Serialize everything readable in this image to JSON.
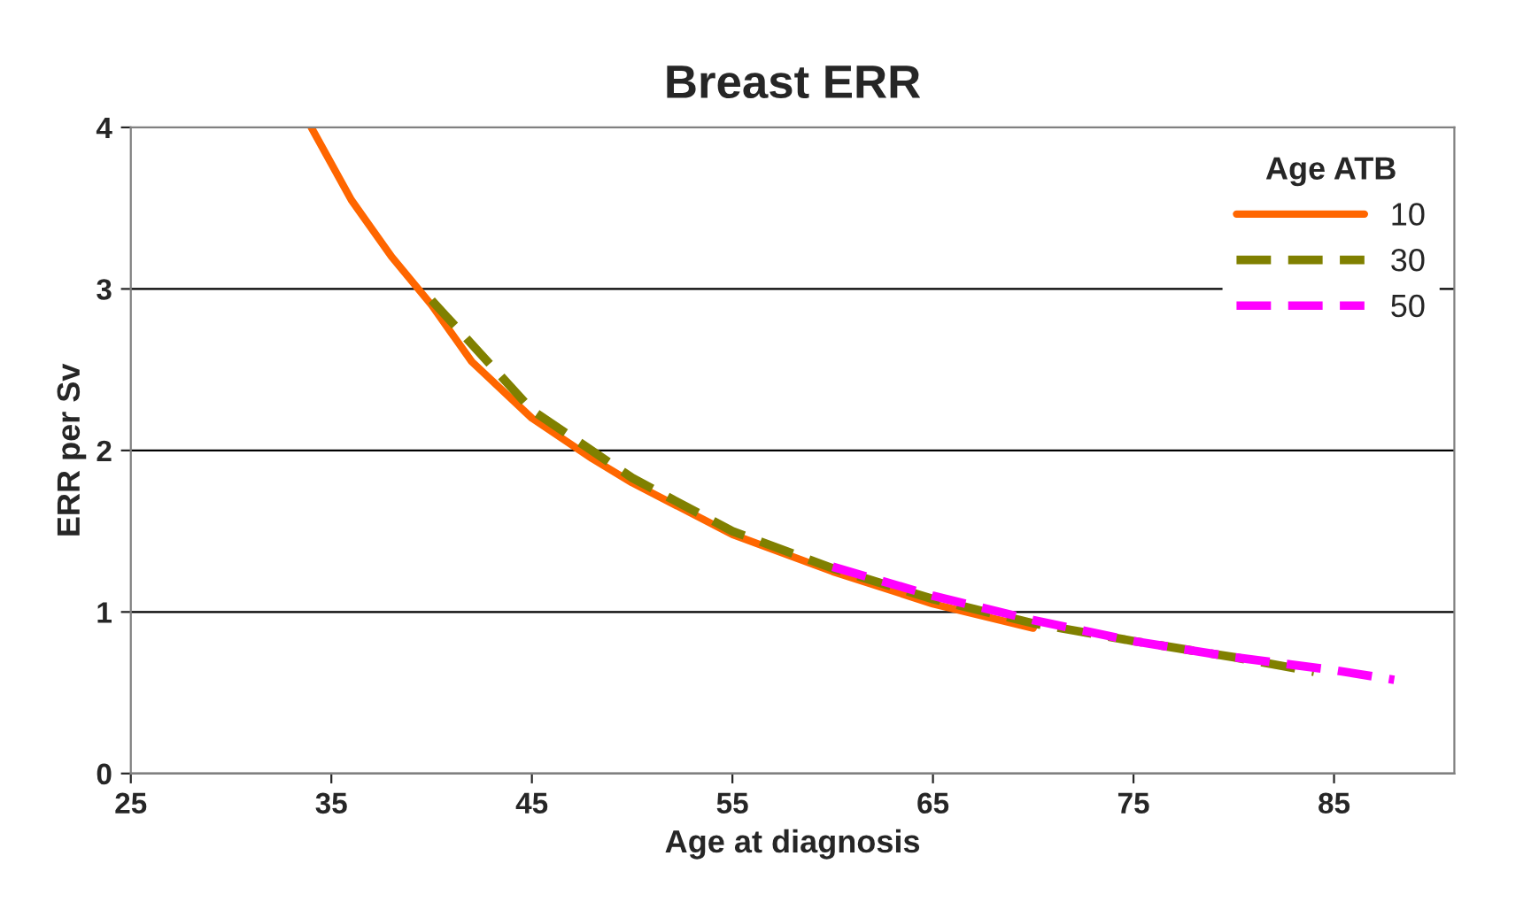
{
  "chart_data": {
    "type": "line",
    "title": "Breast ERR",
    "xlabel": "Age at diagnosis",
    "ylabel": "ERR per Sv",
    "legend_title": "Age ATB",
    "xlim": [
      25,
      91
    ],
    "xticks": [
      25,
      35,
      45,
      55,
      65,
      75,
      85
    ],
    "ylim": [
      0,
      4
    ],
    "yticks": [
      0,
      1,
      2,
      3,
      4
    ],
    "grid": "y",
    "legend": "top right",
    "series": [
      {
        "name": "10",
        "color": "#ff6600",
        "line_style": "solid",
        "x": [
          34,
          36,
          38,
          40,
          42,
          45,
          48,
          50,
          55,
          60,
          65,
          70
        ],
        "values": [
          4.0,
          3.55,
          3.2,
          2.9,
          2.55,
          2.2,
          1.95,
          1.8,
          1.48,
          1.25,
          1.05,
          0.9
        ]
      },
      {
        "name": "30",
        "color": "#808000",
        "line_style": "dashed",
        "x": [
          40,
          45,
          50,
          55,
          60,
          65,
          70,
          75,
          80,
          84
        ],
        "values": [
          2.93,
          2.25,
          1.83,
          1.5,
          1.27,
          1.08,
          0.93,
          0.82,
          0.72,
          0.63
        ]
      },
      {
        "name": "50",
        "color": "#ff00ff",
        "line_style": "dashed",
        "x": [
          60,
          65,
          70,
          75,
          80,
          85,
          88
        ],
        "values": [
          1.28,
          1.1,
          0.95,
          0.82,
          0.72,
          0.64,
          0.58
        ]
      }
    ]
  }
}
